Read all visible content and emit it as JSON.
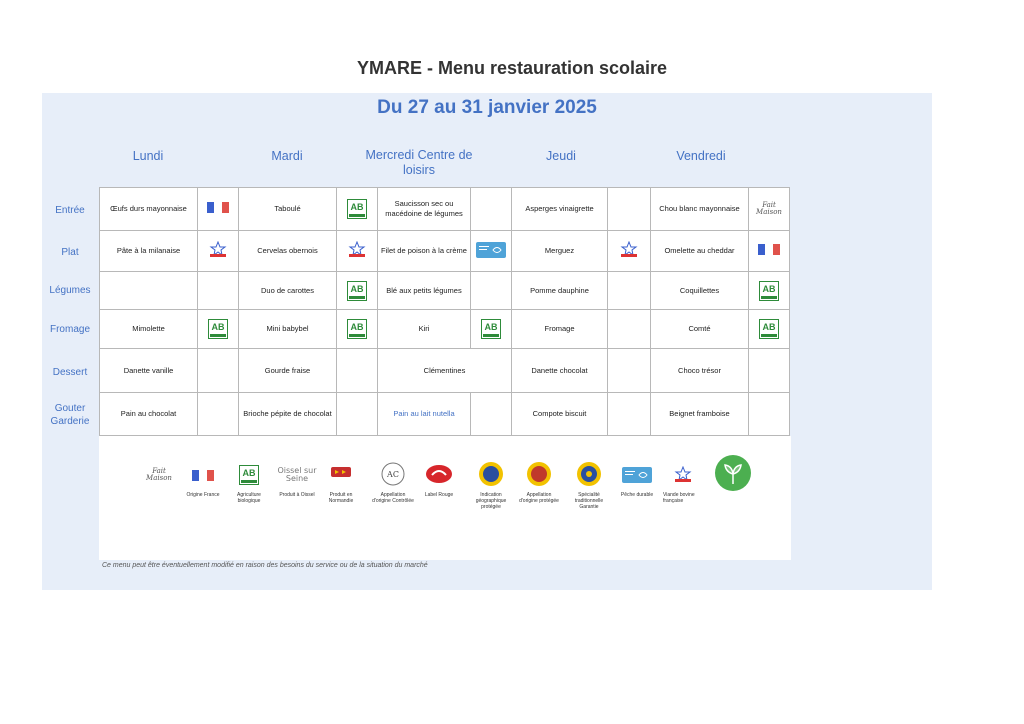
{
  "title": "YMARE - Menu restauration scolaire",
  "dates": "Du 27 au 31 janvier 2025",
  "days": [
    "Lundi",
    "Mardi",
    "Mercredi Centre de loisirs",
    "Jeudi",
    "Vendredi"
  ],
  "rows": [
    {
      "label": "Entrée",
      "cells": [
        {
          "text": "Œufs durs mayonnaise",
          "icon": "france-flag-icon"
        },
        {
          "text": "Taboulé",
          "icon": "agriculture-biologique-icon"
        },
        {
          "text": "Saucisson sec ou macédoine de légumes",
          "icon": ""
        },
        {
          "text": "Asperges vinaigrette",
          "icon": ""
        },
        {
          "text": "Chou blanc mayonnaise",
          "icon": "fait-maison-icon"
        }
      ]
    },
    {
      "label": "Plat",
      "cells": [
        {
          "text": "Pâte à la milanaise",
          "icon": "viande-bovine-francaise-icon"
        },
        {
          "text": "Cervelas obernois",
          "icon": "viande-bovine-francaise-icon"
        },
        {
          "text": "Filet de poison à la crème",
          "icon": "peche-durable-icon"
        },
        {
          "text": "Merguez",
          "icon": "viande-bovine-francaise-icon"
        },
        {
          "text": "Omelette au cheddar",
          "icon": "france-flag-icon"
        }
      ]
    },
    {
      "label": "Légumes",
      "cells": [
        {
          "text": "",
          "icon": ""
        },
        {
          "text": "Duo de carottes",
          "icon": "agriculture-biologique-icon"
        },
        {
          "text": "Blé aux petits légumes",
          "icon": ""
        },
        {
          "text": "Pomme dauphine",
          "icon": ""
        },
        {
          "text": "Coquillettes",
          "icon": "agriculture-biologique-icon"
        }
      ]
    },
    {
      "label": "Fromage",
      "cells": [
        {
          "text": "Mimolette",
          "icon": "agriculture-biologique-icon"
        },
        {
          "text": "Mini babybel",
          "icon": "agriculture-biologique-icon"
        },
        {
          "text": "Kiri",
          "icon": "agriculture-biologique-icon"
        },
        {
          "text": "Fromage",
          "icon": ""
        },
        {
          "text": "Comté",
          "icon": "agriculture-biologique-icon"
        }
      ]
    },
    {
      "label": "Dessert",
      "cells": [
        {
          "text": "Danette vanille",
          "icon": ""
        },
        {
          "text": "Gourde fraise",
          "icon": ""
        },
        {
          "text": "Clémentines",
          "icon": ""
        },
        {
          "text": "Danette chocolat",
          "icon": ""
        },
        {
          "text": "Choco trésor",
          "icon": ""
        }
      ]
    },
    {
      "label": "Gouter Garderie",
      "cells": [
        {
          "text": "Pain au chocolat",
          "icon": ""
        },
        {
          "text": "Brioche pépite de chocolat",
          "icon": ""
        },
        {
          "text": "Pain au lait nutella",
          "icon": ""
        },
        {
          "text": "Compote biscuit",
          "icon": ""
        },
        {
          "text": "Beignet framboise",
          "icon": ""
        }
      ]
    }
  ],
  "legend": [
    {
      "label": "",
      "icon": "fait-maison-icon"
    },
    {
      "label": "Origine France",
      "icon": "france-flag-icon"
    },
    {
      "label": "Agriculture biologique",
      "icon": "agriculture-biologique-icon"
    },
    {
      "label": "Produit à Oissel",
      "icon": "oissel-logo-icon"
    },
    {
      "label": "Produit en Normandie",
      "icon": "normandie-icon"
    },
    {
      "label": "Appellation d'origine Contrôlée",
      "icon": "aoc-icon"
    },
    {
      "label": "Label Rouge",
      "icon": "label-rouge-icon"
    },
    {
      "label": "Indication géographique protégée",
      "icon": "igp-seal-icon"
    },
    {
      "label": "Appellation d'origine protégée",
      "icon": "aop-seal-icon"
    },
    {
      "label": "Spécialité traditionnelle Garantie",
      "icon": "stg-seal-icon"
    },
    {
      "label": "Pêche durable",
      "icon": "peche-durable-icon"
    },
    {
      "label": "Viande bovine française",
      "icon": "viande-bovine-francaise-icon"
    },
    {
      "label": "",
      "icon": "vegetarien-leaf-icon"
    }
  ],
  "oissel_logo": "Oissel sur Seine",
  "footnote": "Ce menu peut être éventuellement modifié en raison des besoins du service ou de la situation du marché",
  "colors": {
    "accent": "#4472c4",
    "panel": "#e7eef9",
    "bio_green": "#2e8b3a",
    "flag_blue": "#3a5fcd",
    "flag_red": "#e0524b"
  }
}
